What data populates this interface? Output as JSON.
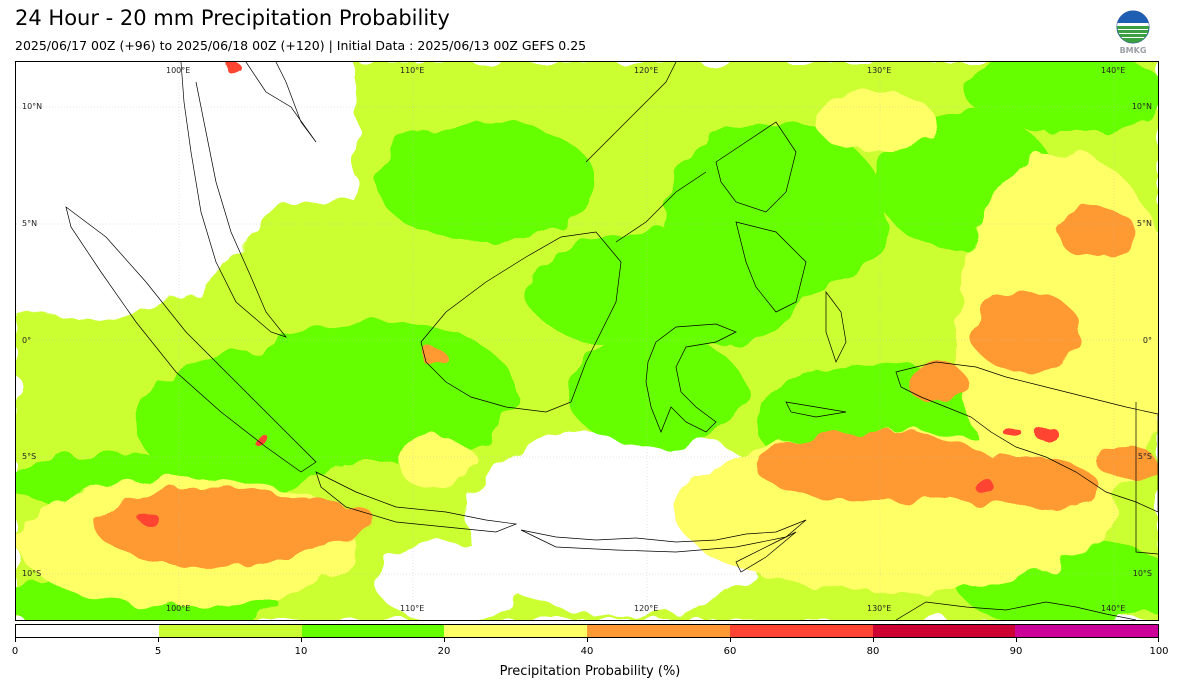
{
  "title": "24 Hour - 20 mm Precipitation Probability",
  "subtitle": "2025/06/17 00Z (+96) to 2025/06/18 00Z (+120) | Initial Data : 2025/06/13 00Z GEFS 0.25",
  "logo_text": "BMKG",
  "map": {
    "lon_labels": [
      "100°E",
      "110°E",
      "120°E",
      "130°E",
      "140°E"
    ],
    "lat_labels": [
      "10°N",
      "5°N",
      "0°",
      "5°S",
      "10°S"
    ],
    "colors": {
      "white": "#ffffff",
      "lime": "#ccff33",
      "green": "#66ff00",
      "yellow": "#ffff66",
      "orange": "#ff9933",
      "red": "#ff4433",
      "crimson": "#cc0033",
      "magenta": "#cc0099"
    }
  },
  "colorbar": {
    "label": "Precipitation Probability (%)",
    "ticks": [
      "0",
      "5",
      "10",
      "20",
      "40",
      "60",
      "80",
      "90",
      "100"
    ],
    "segments": [
      {
        "from": 0,
        "to": 5,
        "color": "#ffffff"
      },
      {
        "from": 5,
        "to": 10,
        "color": "#ccff33"
      },
      {
        "from": 10,
        "to": 20,
        "color": "#66ff00"
      },
      {
        "from": 20,
        "to": 40,
        "color": "#ffff66"
      },
      {
        "from": 40,
        "to": 60,
        "color": "#ff9933"
      },
      {
        "from": 60,
        "to": 80,
        "color": "#ff4433"
      },
      {
        "from": 80,
        "to": 90,
        "color": "#cc0033"
      },
      {
        "from": 90,
        "to": 100,
        "color": "#cc0099"
      }
    ]
  }
}
